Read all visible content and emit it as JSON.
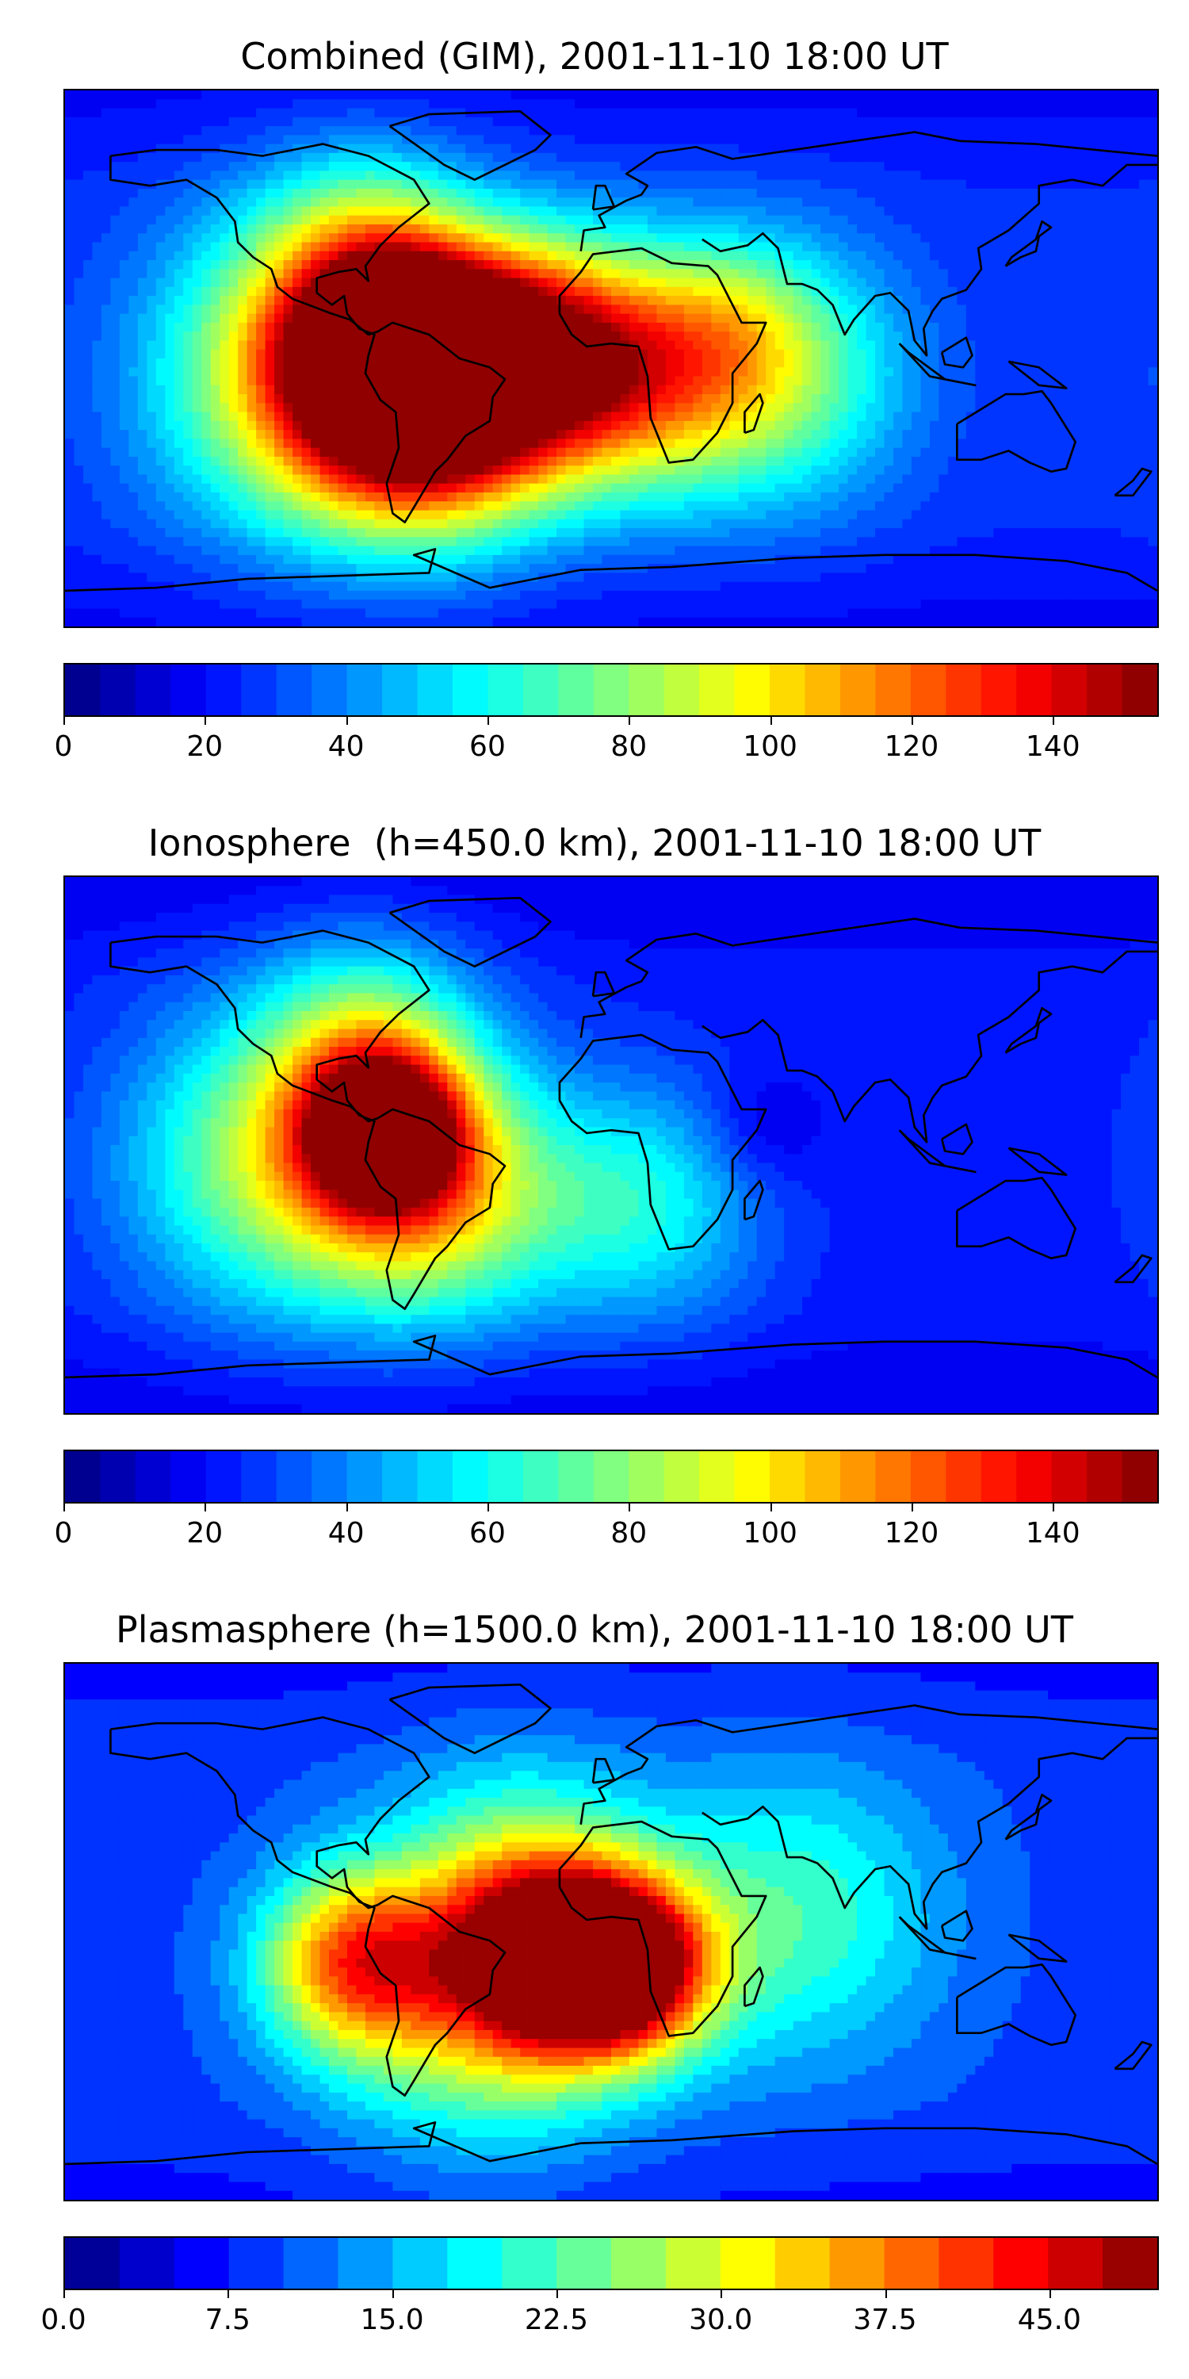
{
  "panels": [
    {
      "title": "Combined (GIM), 2001-11-10 18:00 UT",
      "colorbar": {
        "min": 0,
        "max": 155,
        "levels": 31,
        "ticks": [
          0,
          20,
          40,
          60,
          80,
          100,
          120,
          140
        ],
        "tick_labels": [
          "0",
          "20",
          "40",
          "60",
          "80",
          "100",
          "120",
          "140"
        ]
      },
      "features": [
        {
          "lon": -70,
          "lat": 0,
          "value": 150,
          "spread": 22
        },
        {
          "lon": -30,
          "lat": 2,
          "value": 125,
          "spread": 26
        },
        {
          "lon": -60,
          "lat": -20,
          "value": 115,
          "spread": 30
        },
        {
          "lon": -100,
          "lat": -5,
          "value": 100,
          "spread": 35
        },
        {
          "lon": 10,
          "lat": -5,
          "value": 95,
          "spread": 28
        },
        {
          "lon": 55,
          "lat": -5,
          "value": 75,
          "spread": 30
        },
        {
          "lon": -80,
          "lat": 35,
          "value": 70,
          "spread": 25
        },
        {
          "lon": 40,
          "lat": 15,
          "value": 40,
          "spread": 18
        }
      ],
      "background_value": 25
    },
    {
      "title": "Ionosphere  (h=450.0 km), 2001-11-10 18:00 UT",
      "colorbar": {
        "min": 0,
        "max": 155,
        "levels": 31,
        "ticks": [
          0,
          20,
          40,
          60,
          80,
          100,
          120,
          140
        ],
        "tick_labels": [
          "0",
          "20",
          "40",
          "60",
          "80",
          "100",
          "120",
          "140"
        ]
      },
      "features": [
        {
          "lon": -75,
          "lat": 5,
          "value": 125,
          "spread": 18
        },
        {
          "lon": -60,
          "lat": -15,
          "value": 95,
          "spread": 30
        },
        {
          "lon": -110,
          "lat": -5,
          "value": 80,
          "spread": 35
        },
        {
          "lon": -80,
          "lat": 35,
          "value": 65,
          "spread": 25
        },
        {
          "lon": 10,
          "lat": -20,
          "value": 60,
          "spread": 28
        },
        {
          "lon": 50,
          "lat": 5,
          "value": 10,
          "spread": 14
        }
      ],
      "background_value": 22
    },
    {
      "title": "Plasmasphere (h=1500.0 km), 2001-11-10 18:00 UT",
      "colorbar": {
        "min": 0,
        "max": 50,
        "levels": 20,
        "ticks": [
          0,
          7.5,
          15,
          22.5,
          30,
          37.5,
          45
        ],
        "tick_labels": [
          "0.0",
          "7.5",
          "15.0",
          "22.5",
          "30.0",
          "37.5",
          "45.0"
        ]
      },
      "features": [
        {
          "lon": 5,
          "lat": -12,
          "value": 45,
          "spread": 20
        },
        {
          "lon": -20,
          "lat": -8,
          "value": 40,
          "spread": 22
        },
        {
          "lon": -85,
          "lat": -10,
          "value": 35,
          "spread": 22
        },
        {
          "lon": -40,
          "lat": -25,
          "value": 28,
          "spread": 35
        },
        {
          "lon": 60,
          "lat": 5,
          "value": 22,
          "spread": 35
        },
        {
          "lon": -30,
          "lat": 20,
          "value": 20,
          "spread": 30
        }
      ],
      "background_value": 9
    }
  ],
  "colors": {
    "colormap": "jet",
    "coastline": "#000000"
  }
}
